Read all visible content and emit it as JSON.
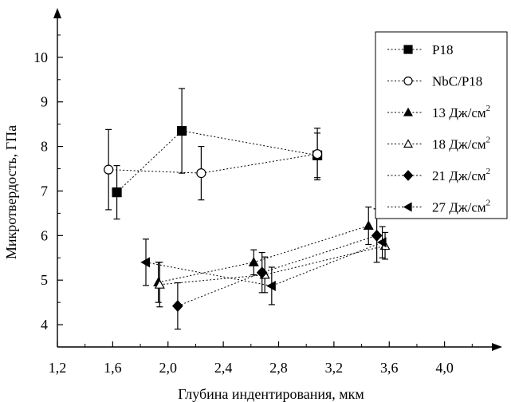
{
  "chart_data": {
    "type": "scatter",
    "xlabel": "Глубина индентирования, мкм",
    "ylabel": "Микротвердость, ГПа",
    "xlim": [
      1.2,
      4.4
    ],
    "ylim": [
      3.5,
      11.0
    ],
    "x_ticks": [
      "1,2",
      "1,6",
      "2,0",
      "2,4",
      "2,8",
      "3,2",
      "3,6",
      "4,0"
    ],
    "x_tick_values": [
      1.2,
      1.6,
      2.0,
      2.4,
      2.8,
      3.2,
      3.6,
      4.0
    ],
    "y_ticks": [
      "4",
      "5",
      "6",
      "7",
      "8",
      "9",
      "10"
    ],
    "y_tick_values": [
      4,
      5,
      6,
      7,
      8,
      9,
      10
    ],
    "grid": false,
    "legend_position": "top-right",
    "series": [
      {
        "name": "P18",
        "marker": "square",
        "filled": true,
        "points": [
          {
            "x": 1.63,
            "y": 6.97,
            "err": 0.6
          },
          {
            "x": 2.1,
            "y": 8.35,
            "err": 0.95
          },
          {
            "x": 3.08,
            "y": 7.8,
            "err": 0.5
          }
        ]
      },
      {
        "name": "NbC/P18",
        "marker": "circle",
        "filled": false,
        "points": [
          {
            "x": 1.57,
            "y": 7.48,
            "err": 0.9
          },
          {
            "x": 2.24,
            "y": 7.4,
            "err": 0.6
          },
          {
            "x": 3.08,
            "y": 7.83,
            "err": 0.58
          }
        ]
      },
      {
        "name": "13 Дж/см",
        "sup": "2",
        "marker": "triangle-up",
        "filled": true,
        "points": [
          {
            "x": 1.93,
            "y": 4.95,
            "err": 0.45
          },
          {
            "x": 2.62,
            "y": 5.4,
            "err": 0.28
          },
          {
            "x": 3.45,
            "y": 6.22,
            "err": 0.42
          }
        ]
      },
      {
        "name": "18 Дж/см",
        "sup": "2",
        "marker": "triangle-up",
        "filled": false,
        "points": [
          {
            "x": 1.94,
            "y": 4.9,
            "err": 0.5
          },
          {
            "x": 2.7,
            "y": 5.12,
            "err": 0.4
          },
          {
            "x": 3.57,
            "y": 5.77,
            "err": 0.3
          }
        ]
      },
      {
        "name": "21 Дж/см",
        "sup": "2",
        "marker": "diamond",
        "filled": true,
        "points": [
          {
            "x": 2.07,
            "y": 4.42,
            "err": 0.52
          },
          {
            "x": 2.68,
            "y": 5.17,
            "err": 0.45
          },
          {
            "x": 3.51,
            "y": 6.0,
            "err": 0.6
          }
        ]
      },
      {
        "name": "27 Дж/см",
        "sup": "2",
        "marker": "triangle-left",
        "filled": true,
        "points": [
          {
            "x": 1.84,
            "y": 5.4,
            "err": 0.52
          },
          {
            "x": 2.75,
            "y": 4.87,
            "err": 0.42
          },
          {
            "x": 3.55,
            "y": 5.85,
            "err": 0.35
          }
        ]
      }
    ]
  }
}
